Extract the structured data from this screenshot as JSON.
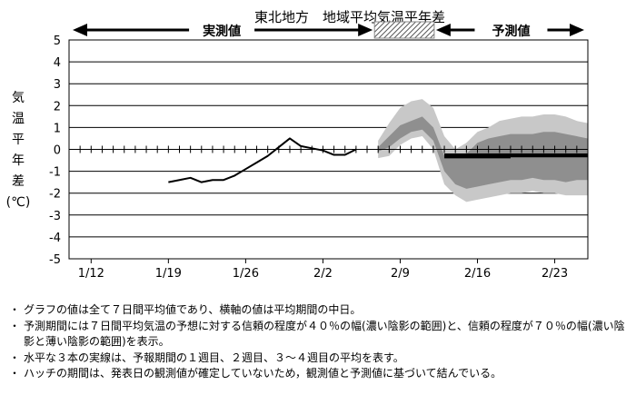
{
  "chart_data": {
    "type": "line",
    "title": "東北地方　地域平均気温平年差",
    "ylabel": [
      "気",
      "温",
      "平",
      "年",
      "差",
      "(℃)"
    ],
    "ylim": [
      -5,
      5
    ],
    "yticks": [
      "5",
      "4",
      "3",
      "2",
      "1",
      "0",
      "-1",
      "-2",
      "-3",
      "-4",
      "-5"
    ],
    "grid": true,
    "x_dates": [
      "1/12",
      "1/19",
      "1/26",
      "2/2",
      "2/9",
      "2/16",
      "2/23"
    ],
    "x_start_day": 1,
    "x_end_day": 48,
    "segments": {
      "observed_label": "実測値",
      "forecast_label": "予測値"
    },
    "observed": {
      "day": [
        10,
        11,
        12,
        13,
        14,
        15,
        16,
        17,
        18,
        19,
        20,
        21,
        22,
        23,
        24,
        25,
        26,
        27
      ],
      "value": [
        -1.5,
        -1.4,
        -1.3,
        -1.5,
        -1.4,
        -1.4,
        -1.2,
        -0.9,
        -0.6,
        -0.3,
        0.1,
        0.5,
        0.15,
        0.05,
        -0.05,
        -0.25,
        -0.25,
        0.0
      ]
    },
    "hatch_period": [
      29,
      34
    ],
    "band_days": [
      29,
      30,
      31,
      32,
      33,
      34,
      35,
      36,
      37,
      38,
      39,
      40,
      41,
      42,
      43,
      44,
      45,
      46,
      47,
      48
    ],
    "band70_upper": [
      0.4,
      1.2,
      1.9,
      2.2,
      2.3,
      1.9,
      0.6,
      0.0,
      0.3,
      0.8,
      1.0,
      1.3,
      1.4,
      1.5,
      1.5,
      1.6,
      1.6,
      1.5,
      1.3,
      1.2
    ],
    "band70_lower": [
      -0.4,
      -0.3,
      0.2,
      0.5,
      0.6,
      0.0,
      -1.6,
      -2.1,
      -2.4,
      -2.3,
      -2.2,
      -2.1,
      -2.0,
      -2.0,
      -1.9,
      -2.0,
      -2.0,
      -2.1,
      -2.1,
      -2.1
    ],
    "band40_upper": [
      0.1,
      0.6,
      1.1,
      1.3,
      1.5,
      1.0,
      -0.3,
      -0.4,
      -0.2,
      0.3,
      0.5,
      0.6,
      0.7,
      0.7,
      0.7,
      0.8,
      0.8,
      0.7,
      0.6,
      0.5
    ],
    "band40_lower": [
      -0.1,
      0.1,
      0.5,
      0.8,
      0.9,
      0.4,
      -1.0,
      -1.6,
      -1.8,
      -1.7,
      -1.6,
      -1.5,
      -1.4,
      -1.4,
      -1.3,
      -1.4,
      -1.4,
      -1.5,
      -1.4,
      -1.4
    ],
    "week_means": [
      {
        "from": 35,
        "to": 41,
        "value": -0.35
      },
      {
        "from": 41,
        "to": 48,
        "value": -0.3
      },
      {
        "from": 35,
        "to": 48,
        "value": -0.25
      }
    ],
    "colors": {
      "band70": "#c8c8c8",
      "band40": "#8f8f8f",
      "line": "#000000",
      "grid": "#000000"
    }
  },
  "notes": [
    "グラフの値は全て７日間平均値であり、横軸の値は平均期間の中日。",
    "予測期間には７日間平均気温の予想に対する信頼の程度が４０％の幅(濃い陰影の範囲)と、信頼の程度が７０％の幅(濃い陰影と薄い陰影の範囲)を表示。",
    "水平な３本の実線は、予報期間の１週目、２週目、３～４週目の平均を表す。",
    "ハッチの期間は、発表日の観測値が確定していないため，観測値と予測値に基づいて結んでいる。"
  ]
}
